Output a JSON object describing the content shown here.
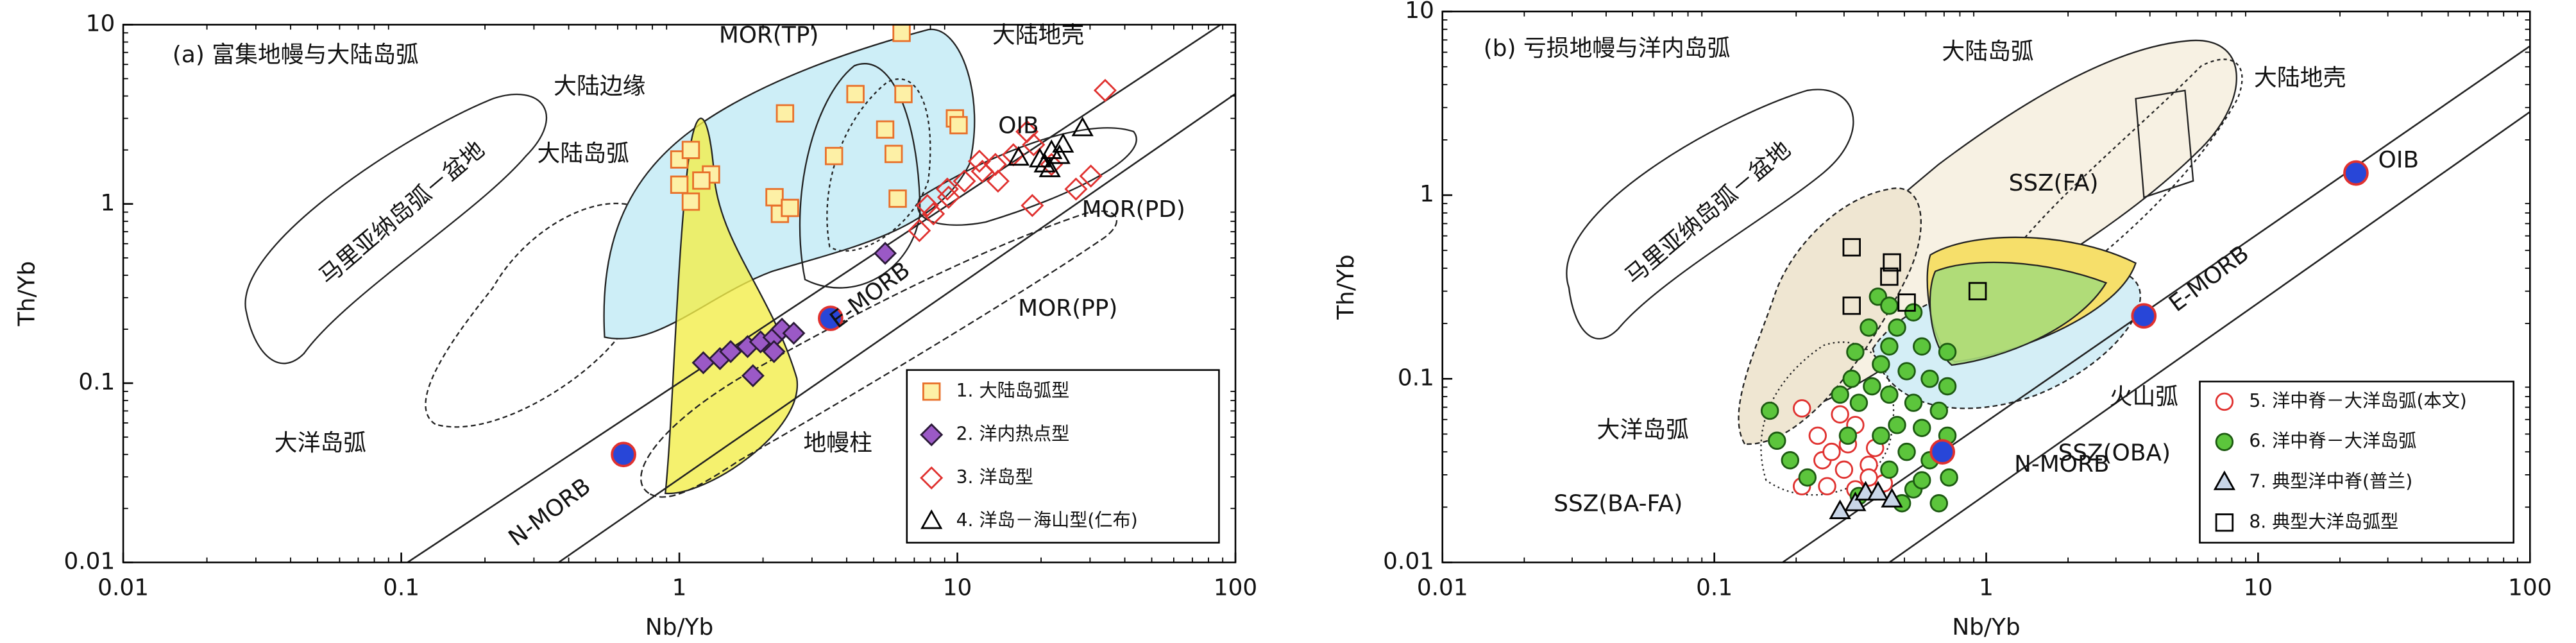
{
  "chart_data": [
    {
      "type": "scatter",
      "title": "(a) 富集地幔与大陆岛弧",
      "x_label": "Nb/Yb",
      "y_label": "Th/Yb",
      "log_x": true,
      "log_y": true,
      "xlim": [
        0.01,
        100
      ],
      "ylim": [
        0.01,
        10
      ],
      "xticks": [
        0.01,
        0.1,
        1,
        10,
        100
      ],
      "yticks": [
        0.01,
        0.1,
        1,
        10
      ],
      "legend": "lower right",
      "series": [
        {
          "name": "1. 大陆岛弧型",
          "marker": "square",
          "color": "#fdf0a6",
          "edgecolor": "#e8702a",
          "x": [
            1.0,
            1.1,
            1.3,
            1.0,
            1.1,
            1.2,
            2.4,
            3.6,
            6.3,
            6.4,
            5.5,
            5.9,
            4.3,
            2.2,
            2.3,
            2.5,
            6.1,
            9.8,
            10.1
          ],
          "y": [
            1.77,
            2.0,
            1.46,
            1.28,
            1.03,
            1.35,
            3.2,
            1.85,
            9.0,
            4.1,
            2.6,
            1.9,
            4.1,
            1.09,
            0.88,
            0.95,
            1.07,
            3.0,
            2.75
          ]
        },
        {
          "name": "2. 洋内热点型",
          "marker": "diamond",
          "color": "#9b59c6",
          "edgecolor": "#2b1a38",
          "x": [
            1.22,
            1.4,
            1.53,
            1.76,
            1.96,
            2.19,
            2.34,
            2.58,
            2.19,
            1.84,
            5.5
          ],
          "y": [
            0.13,
            0.137,
            0.15,
            0.16,
            0.17,
            0.18,
            0.2,
            0.19,
            0.15,
            0.11,
            0.53
          ]
        },
        {
          "name": "3. 洋岛型",
          "marker": "diamond",
          "color": "none",
          "edgecolor": "#e0312f",
          "x": [
            34,
            18.8,
            15.9,
            13.7,
            12.3,
            10.6,
            9.3,
            8.2,
            7.3,
            7.8,
            9.2,
            12.0,
            17.8,
            21.8,
            26.7,
            30.2,
            18.6,
            14
          ],
          "y": [
            4.3,
            2.14,
            1.88,
            1.66,
            1.52,
            1.34,
            1.09,
            0.88,
            0.71,
            0.98,
            1.21,
            1.73,
            2.53,
            1.66,
            1.21,
            1.43,
            0.98,
            1.34
          ]
        },
        {
          "name": "4. 洋岛－海山型(仁布)",
          "marker": "triangle",
          "color": "none",
          "edgecolor": "#000000",
          "x": [
            16.6,
            19.8,
            21.5,
            21.8,
            23.3,
            28.2,
            24,
            20.6
          ],
          "y": [
            1.81,
            1.77,
            1.56,
            1.97,
            1.85,
            2.64,
            2.14,
            1.66
          ]
        }
      ],
      "reference_points": {
        "color": "#2846d8",
        "edgecolor": "#e0312f",
        "labels": [
          "N-MORB",
          "E-MORB"
        ],
        "x": [
          0.63,
          3.5
        ],
        "y": [
          0.04,
          0.23
        ]
      },
      "annotations": [
        "MOR(TP)",
        "大陆地壳",
        "大陆边缘",
        "大陆岛弧",
        "马里亚纳岛弧－盆地",
        "OIB",
        "MOR(PD)",
        "MOR(PP)",
        "大洋岛弧",
        "地幔柱"
      ]
    },
    {
      "type": "scatter",
      "title": "(b) 亏损地幔与洋内岛弧",
      "x_label": "Nb/Yb",
      "y_label": "Th/Yb",
      "log_x": true,
      "log_y": true,
      "xlim": [
        0.01,
        100
      ],
      "ylim": [
        0.01,
        10
      ],
      "xticks": [
        0.01,
        0.1,
        1,
        10,
        100
      ],
      "yticks": [
        0.01,
        0.1,
        1,
        10
      ],
      "legend": "lower right",
      "series": [
        {
          "name": "5. 洋中脊－大洋岛弧(本文)",
          "marker": "circle",
          "color": "#ffffff",
          "edgecolor": "#e0312f",
          "x": [
            0.21,
            0.26,
            0.33,
            0.42,
            0.3,
            0.37,
            0.25,
            0.31,
            0.39,
            0.24,
            0.33,
            0.21,
            0.29,
            0.27,
            0.37
          ],
          "y": [
            0.026,
            0.026,
            0.025,
            0.027,
            0.032,
            0.034,
            0.036,
            0.044,
            0.042,
            0.049,
            0.056,
            0.069,
            0.064,
            0.04,
            0.029
          ]
        },
        {
          "name": "6. 洋中脊－大洋岛弧",
          "marker": "circle",
          "color": "#5cc53c",
          "edgecolor": "#1d5a12",
          "x": [
            0.4,
            0.44,
            0.37,
            0.47,
            0.54,
            0.58,
            0.33,
            0.41,
            0.51,
            0.62,
            0.72,
            0.38,
            0.32,
            0.44,
            0.54,
            0.67,
            0.34,
            0.29,
            0.47,
            0.58,
            0.72,
            0.41,
            0.51,
            0.62,
            0.73,
            0.44,
            0.54,
            0.17,
            0.19,
            0.16,
            0.22,
            0.49,
            0.67,
            0.72,
            0.44,
            0.31,
            0.58,
            0.34
          ],
          "y": [
            0.28,
            0.25,
            0.19,
            0.19,
            0.23,
            0.15,
            0.14,
            0.12,
            0.11,
            0.1,
            0.091,
            0.091,
            0.1,
            0.082,
            0.074,
            0.067,
            0.074,
            0.082,
            0.056,
            0.054,
            0.049,
            0.049,
            0.04,
            0.036,
            0.029,
            0.032,
            0.025,
            0.046,
            0.036,
            0.067,
            0.029,
            0.021,
            0.021,
            0.14,
            0.15,
            0.049,
            0.028,
            0.023
          ]
        },
        {
          "name": "7. 典型洋中脊(普兰)",
          "marker": "triangle",
          "color": "#c9d6e8",
          "edgecolor": "#000000",
          "x": [
            0.33,
            0.36,
            0.4,
            0.45,
            0.29
          ],
          "y": [
            0.021,
            0.024,
            0.024,
            0.022,
            0.019
          ]
        },
        {
          "name": "8. 典型大洋岛弧型",
          "marker": "square",
          "color": "none",
          "edgecolor": "#000000",
          "x": [
            0.32,
            0.45,
            0.44,
            0.51,
            0.32,
            0.93
          ],
          "y": [
            0.52,
            0.43,
            0.36,
            0.26,
            0.25,
            0.3
          ]
        }
      ],
      "reference_points": {
        "color": "#2846d8",
        "edgecolor": "#e0312f",
        "labels": [
          "N-MORB",
          "E-MORB",
          "OIB"
        ],
        "x": [
          0.69,
          3.8,
          22.9
        ],
        "y": [
          0.04,
          0.22,
          1.32
        ]
      },
      "annotations": [
        "大陆岛弧",
        "大陆地壳",
        "马里亚纳岛弧－盆地",
        "SSZ(FA)",
        "火山弧",
        "大洋岛弧",
        "SSZ(OBA)",
        "SSZ(BA-FA)"
      ]
    }
  ]
}
